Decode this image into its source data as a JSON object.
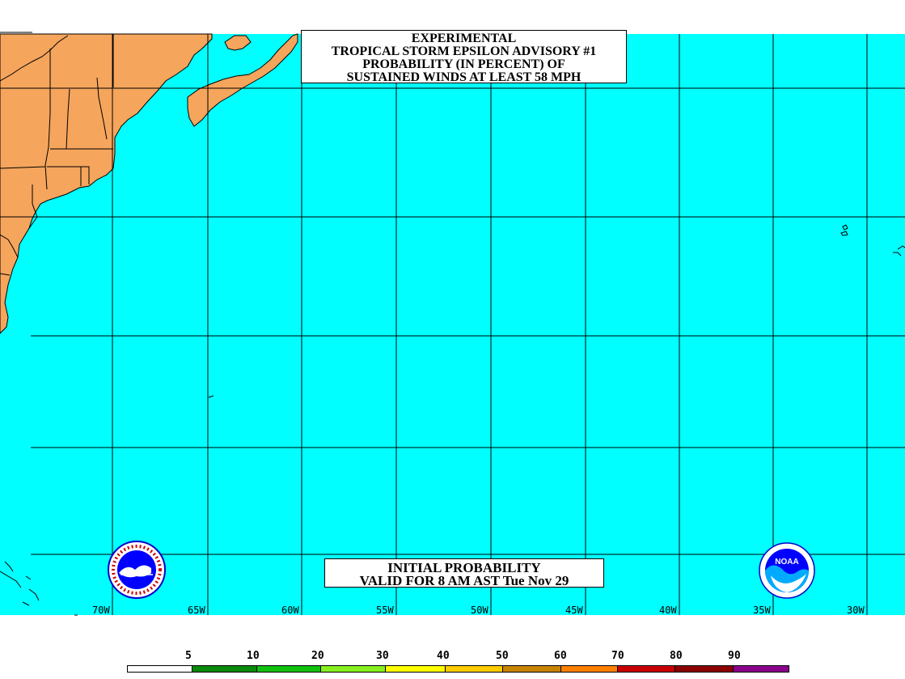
{
  "title": {
    "line1": "EXPERIMENTAL",
    "line2": "TROPICAL STORM EPSILON ADVISORY #1",
    "line3": "PROBABILITY (IN PERCENT) OF",
    "line4": "SUSTAINED WINDS AT LEAST 58 MPH"
  },
  "valid": {
    "line1": "INITIAL PROBABILITY",
    "line2": "VALID FOR 8 AM AST Tue Nov 29"
  },
  "longitude_labels": [
    "70W",
    "65W",
    "60W",
    "55W",
    "50W",
    "45W",
    "40W",
    "35W",
    "30W"
  ],
  "legend": {
    "labels": [
      "5",
      "10",
      "20",
      "30",
      "40",
      "50",
      "60",
      "70",
      "80",
      "90"
    ],
    "colors": [
      "#ffffff",
      "#0a8a0a",
      "#10c010",
      "#86f020",
      "#ffff00",
      "#ffcc00",
      "#c88400",
      "#ff8000",
      "#c80000",
      "#8b0000",
      "#8b008b"
    ]
  },
  "colors": {
    "ocean": "#00ffff",
    "land": "#f5a55c",
    "grid": "#000000"
  },
  "icons": {
    "nws_logo": "nws-logo-icon",
    "noaa_logo": "noaa-logo-icon"
  }
}
